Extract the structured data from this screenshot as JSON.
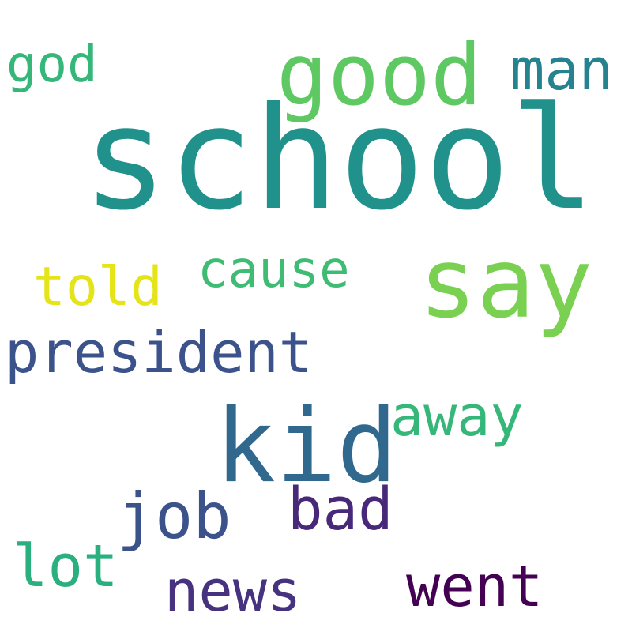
{
  "cloud": {
    "background": "#ffffff",
    "words": {
      "school": {
        "text": "school",
        "color": "#21918c"
      },
      "good": {
        "text": "good",
        "color": "#5ec962"
      },
      "say": {
        "text": "say",
        "color": "#7ad151"
      },
      "kid": {
        "text": "kid",
        "color": "#31688e"
      },
      "president": {
        "text": "president",
        "color": "#3b528b"
      },
      "man": {
        "text": "man",
        "color": "#26828e"
      },
      "god": {
        "text": "god",
        "color": "#35b779"
      },
      "cause": {
        "text": "cause",
        "color": "#3fbc73"
      },
      "told": {
        "text": "told",
        "color": "#e5e419"
      },
      "away": {
        "text": "away",
        "color": "#35b779"
      },
      "job": {
        "text": "job",
        "color": "#3b528b"
      },
      "bad": {
        "text": "bad",
        "color": "#482878"
      },
      "lot": {
        "text": "lot",
        "color": "#2ab07f"
      },
      "news": {
        "text": "news",
        "color": "#46327e"
      },
      "went": {
        "text": "went",
        "color": "#440154"
      }
    }
  }
}
